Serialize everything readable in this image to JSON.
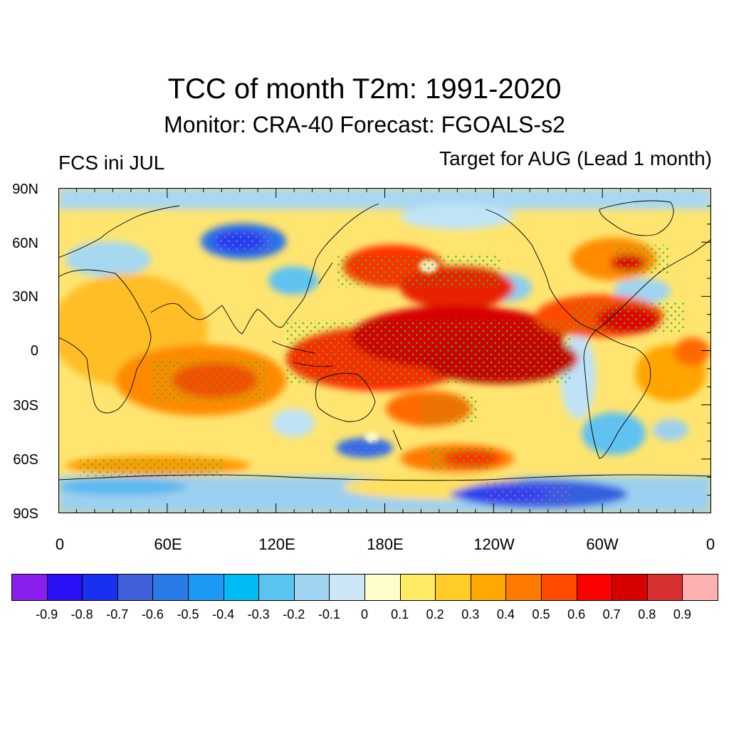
{
  "title": "TCC of month T2m: 1991-2020",
  "subtitle": "Monitor: CRA-40   Forecast: FGOALS-s2",
  "left_label": "FCS ini JUL",
  "right_label": "Target for AUG (Lead 1 month)",
  "lat_labels": [
    "90N",
    "60N",
    "30N",
    "0",
    "30S",
    "60S",
    "90S"
  ],
  "lon_labels": [
    "0",
    "60E",
    "120E",
    "180E",
    "120W",
    "60W",
    "0"
  ],
  "colorbar": {
    "labels": [
      "-0.9",
      "-0.8",
      "-0.7",
      "-0.6",
      "-0.5",
      "-0.4",
      "-0.3",
      "-0.2",
      "-0.1",
      "0",
      "0.1",
      "0.2",
      "0.3",
      "0.4",
      "0.5",
      "0.6",
      "0.7",
      "0.8",
      "0.9"
    ],
    "colors": [
      "#8a20f0",
      "#2a10f4",
      "#1a30f0",
      "#4060dc",
      "#2a7ae8",
      "#1a9af4",
      "#00bcf4",
      "#5ac4f0",
      "#a0d4f0",
      "#cce6f6",
      "#fffccc",
      "#ffec64",
      "#ffcc28",
      "#ffa800",
      "#ff7a00",
      "#ff4a00",
      "#ff0000",
      "#d60000",
      "#d83030",
      "#ffb0b0"
    ]
  },
  "stipple_colors": {
    "positive": "#22cc22",
    "negative": "#cc44cc"
  },
  "coastline_color": "#000000"
}
